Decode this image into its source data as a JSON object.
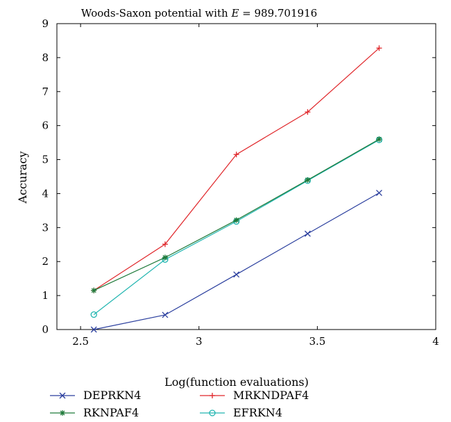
{
  "chart_data": {
    "type": "line",
    "title_prefix": "Woods-Saxon potential with ",
    "title_var": "E",
    "title_suffix": " = 989.701916",
    "xlabel": "Log(function evaluations)",
    "ylabel": "Accuracy",
    "xlim": [
      2.4,
      4
    ],
    "ylim": [
      0,
      9
    ],
    "xticks": [
      2.5,
      3,
      3.5,
      4
    ],
    "xtick_labels": [
      "2.5",
      "3",
      "3.5",
      "4"
    ],
    "yticks": [
      0,
      1,
      2,
      3,
      4,
      5,
      6,
      7,
      8,
      9
    ],
    "ytick_labels": [
      "0",
      "1",
      "2",
      "3",
      "4",
      "5",
      "6",
      "7",
      "8",
      "9"
    ],
    "grid": false,
    "legend_position": "bottom, below plot, two columns",
    "series": [
      {
        "name": "DEPRKN4",
        "color": "#2b3f9e",
        "marker": "x",
        "x": [
          2.556,
          2.857,
          3.158,
          3.459,
          3.761
        ],
        "y": [
          0.0,
          0.43,
          1.62,
          2.82,
          4.02
        ]
      },
      {
        "name": "MRKNDPAF4",
        "color": "#e0262a",
        "marker": "plus",
        "x": [
          2.556,
          2.857,
          3.158,
          3.459,
          3.761
        ],
        "y": [
          1.15,
          2.51,
          5.15,
          6.4,
          8.28
        ]
      },
      {
        "name": "RKNPAF4",
        "color": "#1f7a3a",
        "marker": "star",
        "x": [
          2.556,
          2.857,
          3.158,
          3.459,
          3.761
        ],
        "y": [
          1.15,
          2.12,
          3.22,
          4.4,
          5.6
        ]
      },
      {
        "name": "EFRKN4",
        "color": "#20b5b0",
        "marker": "circle",
        "x": [
          2.556,
          2.857,
          3.158,
          3.459,
          3.761
        ],
        "y": [
          0.44,
          2.06,
          3.18,
          4.38,
          5.58
        ]
      }
    ]
  }
}
